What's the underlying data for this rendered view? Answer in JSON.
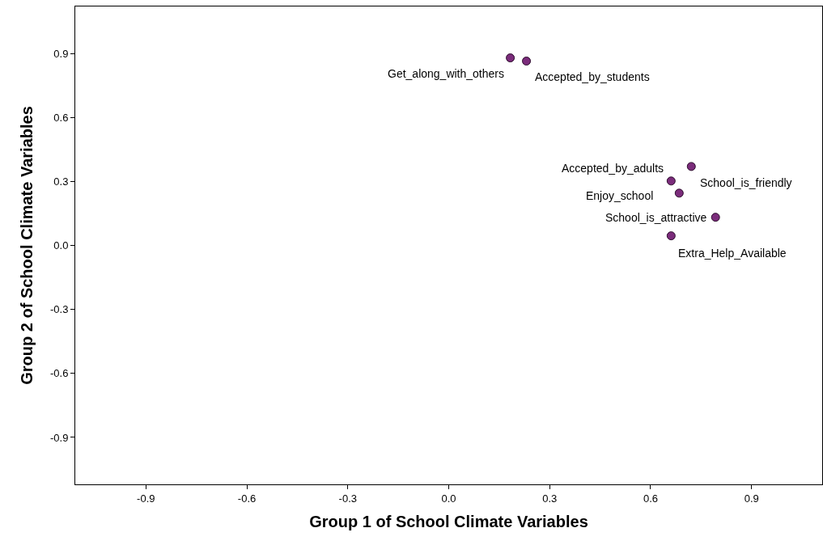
{
  "chart_data": {
    "type": "scatter",
    "xlabel": "Group 1 of School Climate Variables",
    "ylabel": "Group 2 of School Climate Variables",
    "x": [
      0.183,
      0.231,
      0.661,
      0.721,
      0.685,
      0.793,
      0.661
    ],
    "values": [
      0.879,
      0.864,
      0.302,
      0.37,
      0.245,
      0.132,
      0.045
    ],
    "color": "#7b2c7b",
    "marker": "circle",
    "xlim": [
      -1.11,
      1.11
    ],
    "ylim": [
      -1.12,
      1.12
    ],
    "xticks": [
      {
        "value": -0.9,
        "label": "-0.9"
      },
      {
        "value": -0.6,
        "label": "-0.6"
      },
      {
        "value": -0.3,
        "label": "-0.3"
      },
      {
        "value": 0.0,
        "label": "0.0"
      },
      {
        "value": 0.3,
        "label": "0.3"
      },
      {
        "value": 0.6,
        "label": "0.6"
      },
      {
        "value": 0.9,
        "label": "0.9"
      }
    ],
    "yticks": [
      {
        "value": -0.9,
        "label": "-0.9"
      },
      {
        "value": -0.6,
        "label": "-0.6"
      },
      {
        "value": -0.3,
        "label": "-0.3"
      },
      {
        "value": 0.0,
        "label": "0.0"
      },
      {
        "value": 0.3,
        "label": "0.3"
      },
      {
        "value": 0.6,
        "label": "0.6"
      },
      {
        "value": 0.9,
        "label": "0.9"
      }
    ],
    "legend": false,
    "annotations": [
      {
        "text": "Get_along_with_others",
        "x": 0.183,
        "y": 0.879
      },
      {
        "text": "Accepted_by_students",
        "x": 0.231,
        "y": 0.864
      },
      {
        "text": "Accepted_by_adults",
        "x": 0.661,
        "y": 0.302
      },
      {
        "text": "School_is_friendly",
        "x": 0.721,
        "y": 0.37
      },
      {
        "text": "Enjoy_school",
        "x": 0.685,
        "y": 0.245
      },
      {
        "text": "School_is_attractive",
        "x": 0.793,
        "y": 0.132
      },
      {
        "text": "Extra_Help_Available",
        "x": 0.661,
        "y": 0.045
      }
    ]
  }
}
